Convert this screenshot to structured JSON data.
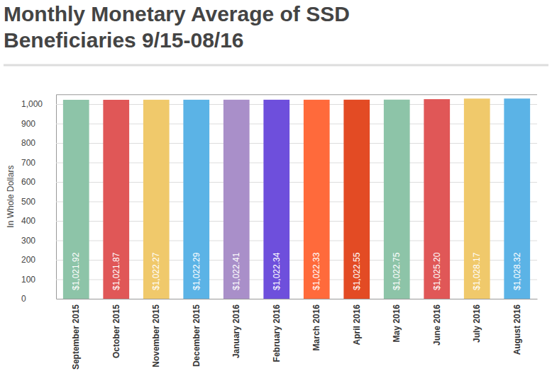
{
  "chart_data": {
    "type": "bar",
    "title": "Monthly Monetary Average of SSD Beneficiaries 9/15-08/16",
    "y_label": "In Whole Dollars",
    "categories": [
      "September 2015",
      "October 2015",
      "November 2015",
      "December 2015",
      "January 2016",
      "February 2016",
      "March 2016",
      "April 2016",
      "May 2016",
      "June 2016",
      "July 2016",
      "August 2016"
    ],
    "values": [
      1021.92,
      1021.87,
      1022.27,
      1022.29,
      1022.41,
      1022.34,
      1022.33,
      1022.55,
      1022.75,
      1025.2,
      1028.17,
      1028.32
    ],
    "value_labels": [
      "$1,021.92",
      "$1,021.87",
      "$1,022.27",
      "$1,022.29",
      "$1,022.41",
      "$1,022.34",
      "$1,022.33",
      "$1,022.55",
      "$1,022.75",
      "$1,025.20",
      "$1,028.17",
      "$1,028.32"
    ],
    "colors": [
      "#8dc4a8",
      "#e05757",
      "#f0c96b",
      "#5bb3e6",
      "#a98fc9",
      "#6e4fdc",
      "#ff6a3b",
      "#e34b24",
      "#8dc4a8",
      "#e05757",
      "#f0c96b",
      "#5bb3e6"
    ],
    "ylim": [
      0,
      1050
    ],
    "yticks": [
      0,
      100,
      200,
      300,
      400,
      500,
      600,
      700,
      800,
      900,
      {
        "value": 1000,
        "label": "1,000"
      }
    ],
    "grid": true,
    "data_labels": true
  }
}
